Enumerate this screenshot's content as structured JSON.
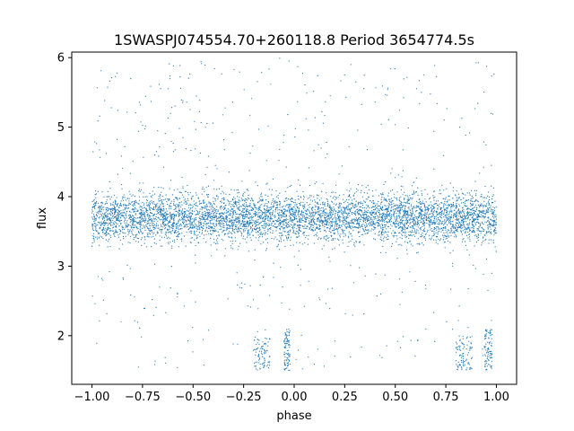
{
  "chart_data": {
    "type": "scatter",
    "title": "1SWASPJ074554.70+260118.8 Period 3654774.5s",
    "xlabel": "phase",
    "ylabel": "flux",
    "xlim": [
      -1.1,
      1.1
    ],
    "ylim": [
      1.3,
      6.08
    ],
    "x_ticks": [
      -1.0,
      -0.75,
      -0.5,
      -0.25,
      0.0,
      0.25,
      0.5,
      0.75,
      1.0
    ],
    "x_tick_labels": [
      "−1.00",
      "−0.75",
      "−0.50",
      "−0.25",
      "0.00",
      "0.25",
      "0.50",
      "0.75",
      "1.00"
    ],
    "y_ticks": [
      2,
      3,
      4,
      5,
      6
    ],
    "y_tick_labels": [
      "2",
      "3",
      "4",
      "5",
      "6"
    ],
    "grid": false,
    "legend": "none",
    "point_color": "#1f77b4",
    "series": [
      {
        "x_range": [
          -1.0,
          1.0
        ],
        "baseline_flux": 3.7,
        "core_band": [
          3.3,
          4.1
        ],
        "outlier_range": [
          1.5,
          6.0
        ],
        "low_flux_clusters": [
          {
            "x": [
              -0.2,
              -0.12
            ],
            "y": [
              1.5,
              2.0
            ]
          },
          {
            "x": [
              -0.05,
              -0.02
            ],
            "y": [
              1.5,
              2.1
            ]
          },
          {
            "x": [
              0.8,
              0.88
            ],
            "y": [
              1.5,
              2.0
            ]
          },
          {
            "x": [
              0.94,
              0.98
            ],
            "y": [
              1.5,
              2.1
            ]
          }
        ]
      }
    ]
  }
}
